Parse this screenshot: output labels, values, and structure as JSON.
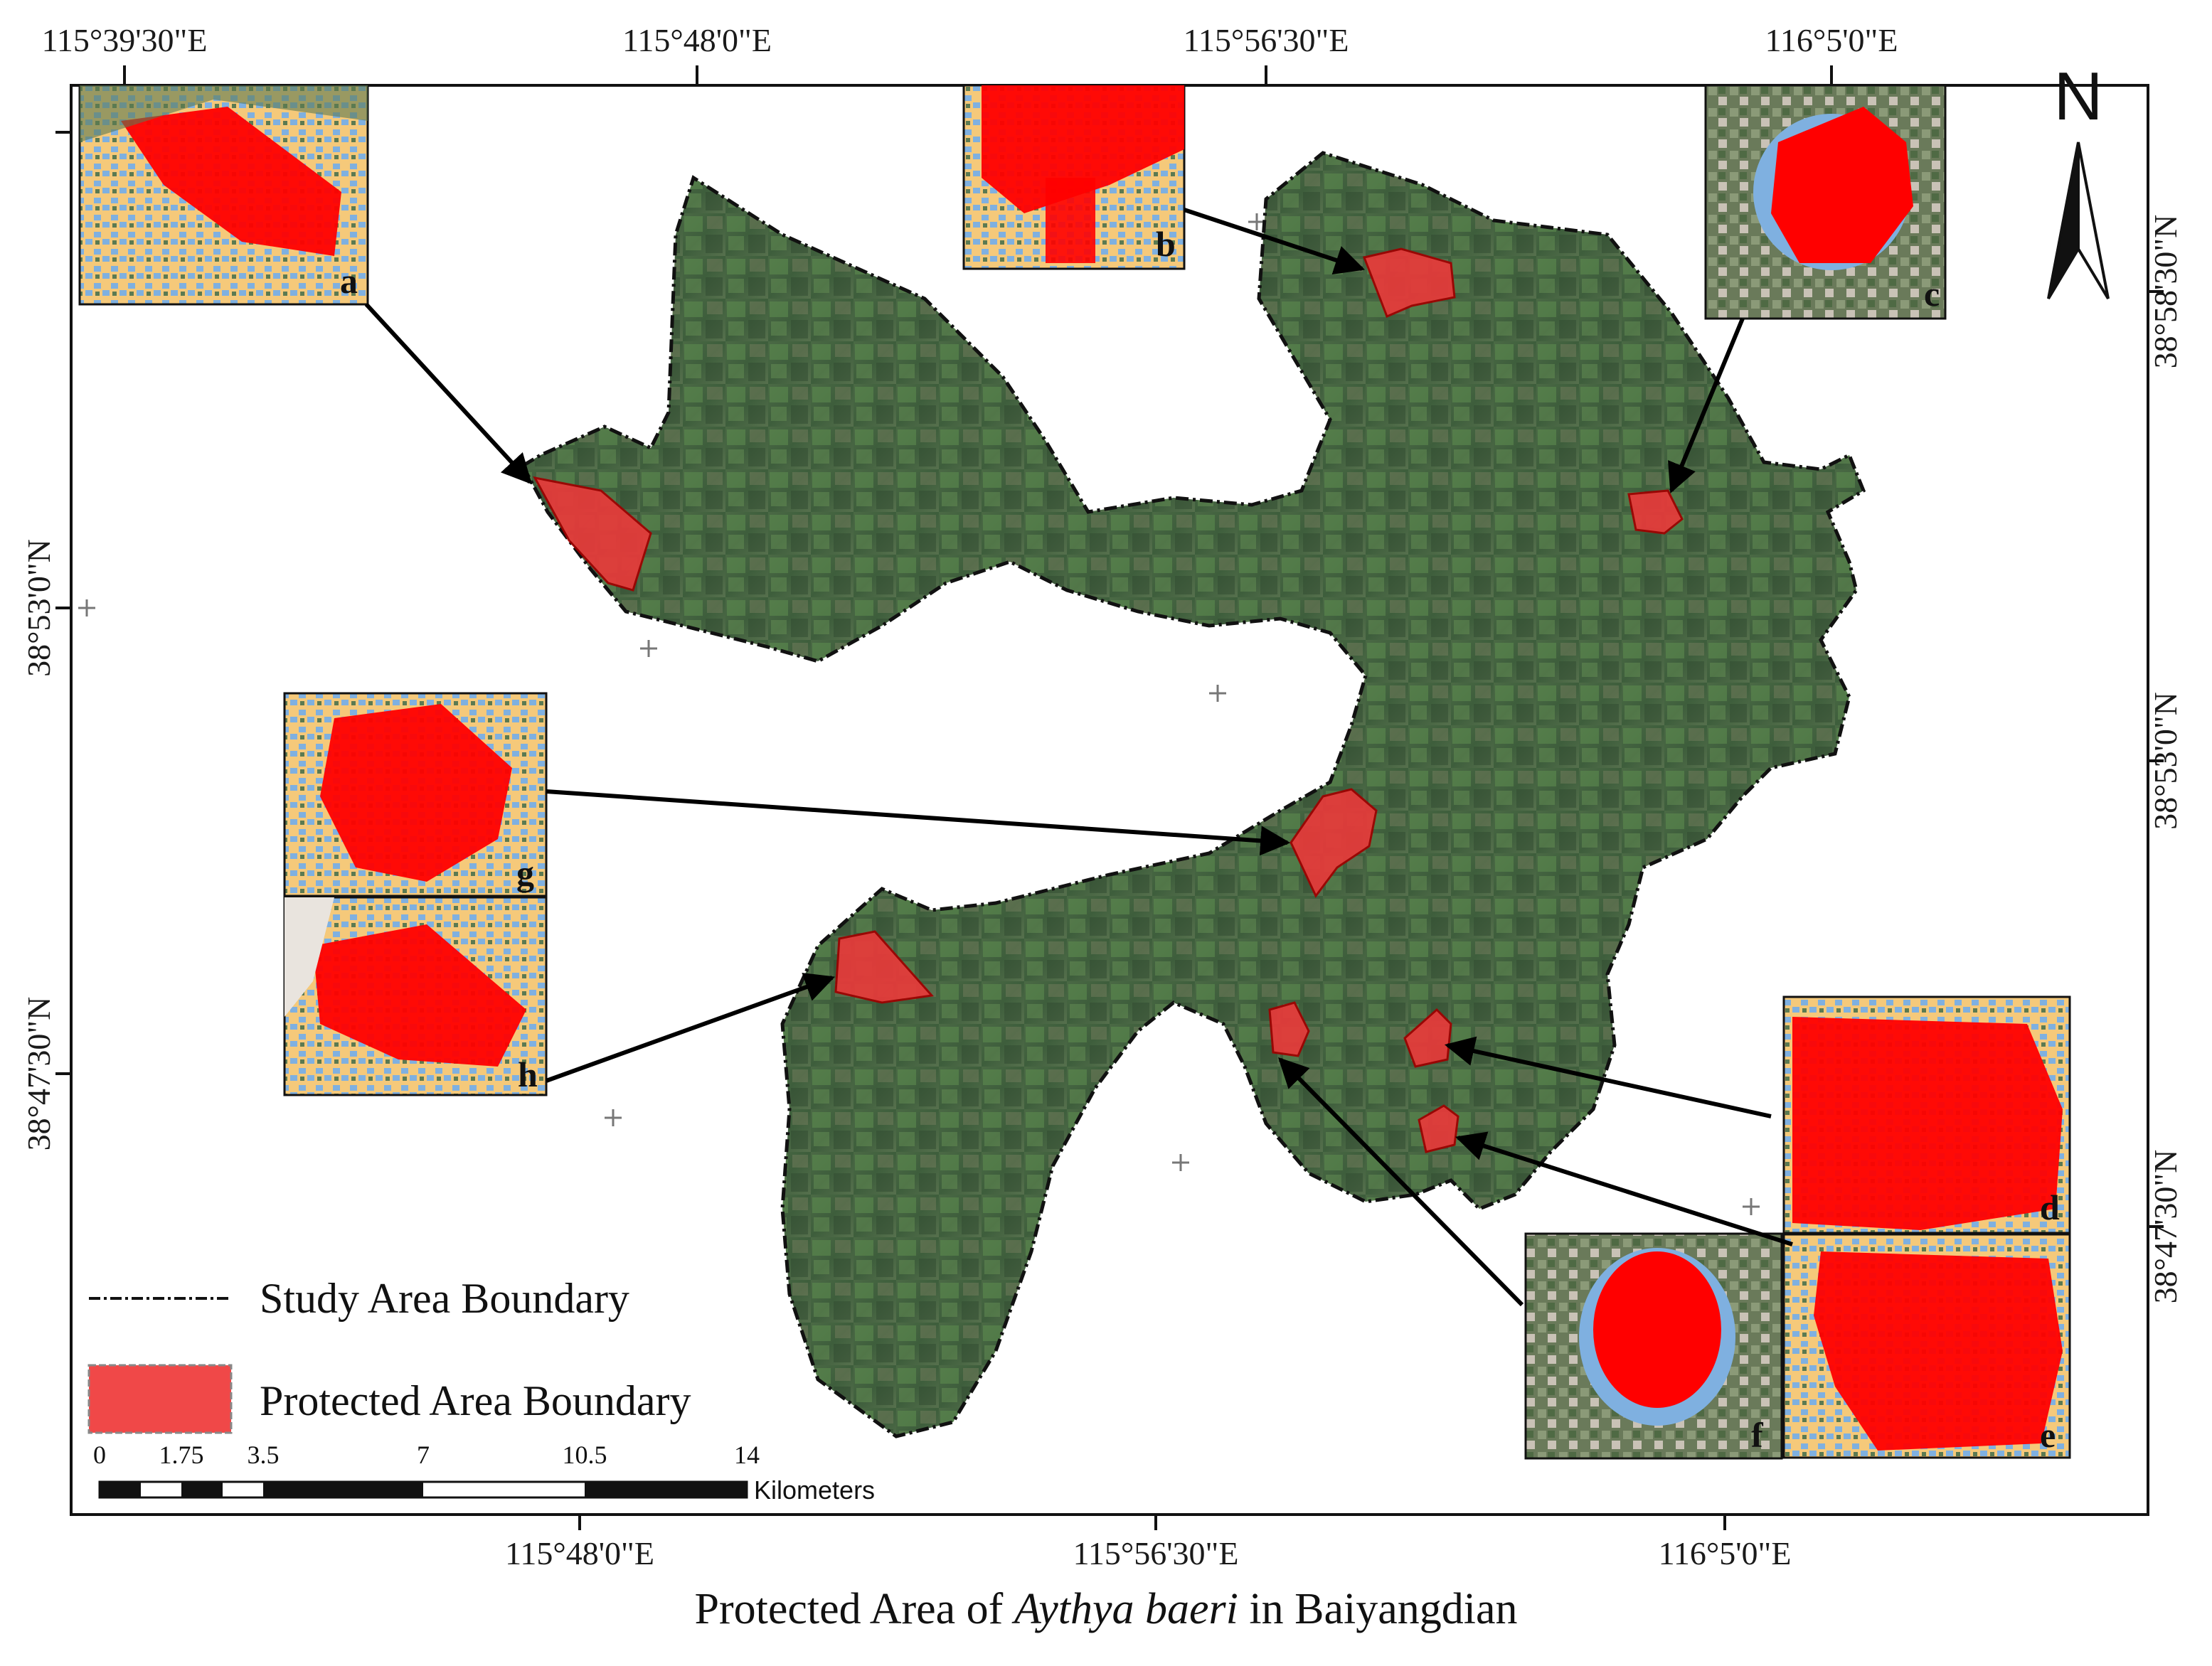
{
  "title_parts": {
    "prefix": "Protected Area of ",
    "species": "Aythya baeri",
    "suffix": " in Baiyangdian"
  },
  "top_longitudes": [
    "115°39'30\"E",
    "115°48'0\"E",
    "115°56'30\"E",
    "116°5'0\"E"
  ],
  "bottom_longitudes": [
    "115°48'0\"E",
    "115°56'30\"E",
    "116°5'0\"E"
  ],
  "left_latitudes": [
    "38°53'0\"N",
    "38°47'30\"N"
  ],
  "right_latitudes": [
    "38°58'30\"N",
    "38°53'0\"N",
    "38°47'30\"N"
  ],
  "north_arrow": {
    "label": "N"
  },
  "legend": {
    "study_area": "Study Area Boundary",
    "protected_area": "Protected Area Boundary"
  },
  "scale_bar": {
    "ticks": [
      "0",
      "1.75",
      "3.5",
      "7",
      "10.5",
      "14"
    ],
    "unit": "Kilometers"
  },
  "insets": [
    "a",
    "b",
    "c",
    "d",
    "e",
    "f",
    "g",
    "h"
  ],
  "colors": {
    "protected": "#ff0000",
    "protected_fill": "#e83a3a",
    "moderate": "#f5c97a",
    "low": "#7fb0e0",
    "vegetation": "#3d5e3a"
  }
}
